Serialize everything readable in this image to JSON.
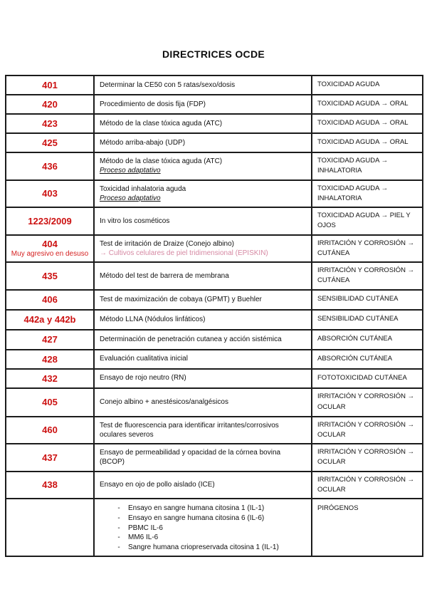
{
  "page": {
    "title": "DIRECTRICES OCDE"
  },
  "colors": {
    "code_red": "#cc1111",
    "code_note_red": "#d52222",
    "alt_pink": "#d689a3",
    "border_black": "#1b1b1b",
    "background": "#ffffff"
  },
  "list_bullet": "-",
  "table": {
    "rows": [
      {
        "code": "401",
        "desc": "Determinar la CE50 con 5 ratas/sexo/dosis",
        "cat": "TOXICIDAD AGUDA"
      },
      {
        "code": "420",
        "desc": "Procedimiento de dosis fija (FDP)",
        "cat": "TOXICIDAD AGUDA → ORAL"
      },
      {
        "code": "423",
        "desc": "Método de la clase tóxica aguda (ATC)",
        "cat": "TOXICIDAD AGUDA → ORAL"
      },
      {
        "code": "425",
        "desc": "Método arriba-abajo (UDP)",
        "cat": "TOXICIDAD AGUDA → ORAL"
      },
      {
        "code": "436",
        "desc": "Método de la clase tóxica aguda (ATC)",
        "note": "Proceso adaptativo",
        "cat": "TOXICIDAD AGUDA → INHALATORIA"
      },
      {
        "code": "403",
        "desc": "Toxicidad inhalatoria aguda",
        "note": "Proceso adaptativo",
        "cat": "TOXICIDAD AGUDA → INHALATORIA"
      },
      {
        "code": "1223/2009",
        "desc": "In vitro los cosméticos",
        "cat": "TOXICIDAD AGUDA → PIEL Y OJOS"
      },
      {
        "code": "404",
        "code_note": "Muy agresivo en desuso",
        "desc": "Test de irritación de Draize (Conejo albino)",
        "alt": "→ Cultivos celulares de piel tridimensional (EPISKIN)",
        "cat": "IRRITACIÓN Y CORROSIÓN → CUTÁNEA"
      },
      {
        "code": "435",
        "desc": "Método del test de barrera de membrana",
        "cat": "IRRITACIÓN Y CORROSIÓN → CUTÁNEA"
      },
      {
        "code": "406",
        "desc": "Test de maximización de cobaya (GPMT) y Buehler",
        "cat": "SENSIBILIDAD CUTÁNEA"
      },
      {
        "code": "442a y 442b",
        "desc": "Método LLNA (Nódulos linfáticos)",
        "cat": "SENSIBILIDAD CUTÁNEA"
      },
      {
        "code": "427",
        "desc": "Determinación de penetración cutanea y acción sistémica",
        "cat": "ABSORCIÓN CUTÁNEA"
      },
      {
        "code": "428",
        "desc": "Evaluación cualitativa inicial",
        "cat": "ABSORCIÓN CUTÁNEA"
      },
      {
        "code": "432",
        "desc": "Ensayo de rojo neutro (RN)",
        "cat": "FOTOTOXICIDAD CUTÁNEA"
      },
      {
        "code": "405",
        "desc": "Conejo albino + anestésicos/analgésicos",
        "cat": "IRRITACIÓN Y CORROSIÓN → OCULAR"
      },
      {
        "code": "460",
        "desc": "Test de fluorescencia para identificar irritantes/corrosivos oculares severos",
        "cat": "IRRITACIÓN Y CORROSIÓN → OCULAR"
      },
      {
        "code": "437",
        "desc": "Ensayo de permeabilidad y opacidad de la córnea bovina (BCOP)",
        "cat": "IRRITACIÓN Y CORROSIÓN → OCULAR"
      },
      {
        "code": "438",
        "desc": "Ensayo en ojo de pollo aislado (ICE)",
        "cat": "IRRITACIÓN Y CORROSIÓN → OCULAR"
      },
      {
        "code": "",
        "items": [
          "Ensayo en sangre humana citosina 1 (IL-1)",
          "Ensayo en sangre humana citosina 6 (IL-6)",
          "PBMC IL-6",
          "MM6 IL-6",
          "Sangre humana criopreservada citosina 1 (IL-1)"
        ],
        "cat": "PIRÓGENOS"
      }
    ]
  }
}
